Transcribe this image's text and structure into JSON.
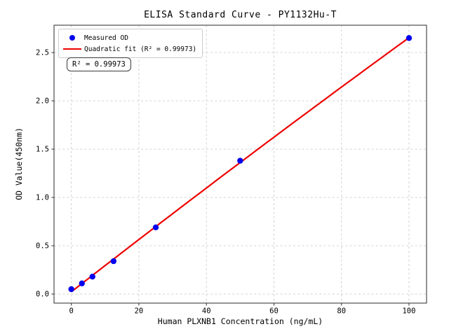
{
  "chart": {
    "title": "ELISA Standard Curve - PY1132Hu-T",
    "xlabel": "Human PLXNB1 Concentration (ng/mL)",
    "ylabel": "OD Value(450nm)",
    "annotation": "R² = 0.99973",
    "legend": {
      "items": [
        {
          "label": "Measured OD",
          "marker": "dot",
          "color": "#0000ee"
        },
        {
          "label": "Quadratic fit (R² = 0.99973)",
          "marker": "line",
          "color": "#ee0000"
        }
      ]
    }
  },
  "chart_data": {
    "type": "scatter",
    "title": "ELISA Standard Curve - PY1132Hu-T",
    "xlabel": "Human PLXNB1 Concentration (ng/mL)",
    "ylabel": "OD Value(450nm)",
    "x": [
      0,
      3.125,
      6.25,
      12.5,
      25,
      50,
      100
    ],
    "y": [
      0.05,
      0.11,
      0.18,
      0.34,
      0.69,
      1.38,
      2.65
    ],
    "series": [
      {
        "name": "Measured OD",
        "type": "scatter",
        "color": "#0000ee"
      },
      {
        "name": "Quadratic fit",
        "type": "quadratic-fit",
        "color": "#ee0000",
        "r_squared": 0.99973
      }
    ],
    "xticks": [
      0,
      20,
      40,
      60,
      80,
      100
    ],
    "xtick_labels": [
      "0",
      "20",
      "40",
      "60",
      "80",
      "100"
    ],
    "yticks": [
      0,
      0.5,
      1.0,
      1.5,
      2.0,
      2.5
    ],
    "ytick_labels": [
      "0.0",
      "0.5",
      "1.0",
      "1.5",
      "2.0",
      "2.5"
    ],
    "xlim": [
      -5.13,
      105.2
    ],
    "ylim": [
      -0.094,
      2.783
    ],
    "grid": true,
    "grid_style": "dashed",
    "legend_position": "upper left"
  },
  "colors": {
    "point": "#0000ee",
    "fit_line": "#ee0000",
    "grid": "#cccccc",
    "spine": "#2a2a2a",
    "background": "#ffffff"
  }
}
